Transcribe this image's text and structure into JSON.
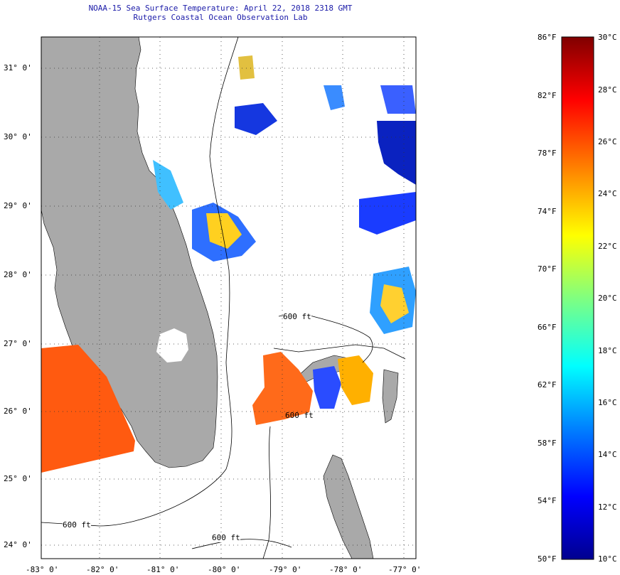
{
  "title": {
    "line1": "NOAA-15 Sea Surface Temperature:  April 22, 2018 2318 GMT",
    "line2": "Rutgers Coastal Ocean Observation Lab"
  },
  "map": {
    "lat_labels": [
      "31° 0'",
      "30° 0'",
      "29° 0'",
      "28° 0'",
      "27° 0'",
      "26° 0'",
      "25° 0'",
      "24° 0'"
    ],
    "lon_labels": [
      "-83° 0'",
      "-82° 0'",
      "-81° 0'",
      "-80° 0'",
      "-79° 0'",
      "-78° 0'",
      "-77° 0'"
    ],
    "isobath_labels": [
      "600 ft",
      "600 ft",
      "600 ft",
      "600 ft"
    ],
    "land_color": "#a9a9a9",
    "background_color": "#ffffff",
    "grid": "dotted"
  },
  "colorbar": {
    "fahrenheit": [
      "86°F",
      "82°F",
      "78°F",
      "74°F",
      "70°F",
      "66°F",
      "62°F",
      "58°F",
      "54°F",
      "50°F"
    ],
    "celsius": [
      "30°C",
      "28°C",
      "26°C",
      "24°C",
      "22°C",
      "20°C",
      "18°C",
      "16°C",
      "14°C",
      "12°C",
      "10°C"
    ],
    "range_c": [
      10,
      30
    ],
    "range_f": [
      50,
      86
    ],
    "colormap": "jet",
    "colors": [
      "#00008f",
      "#0000ff",
      "#0080ff",
      "#00ffff",
      "#80ff80",
      "#ffff00",
      "#ff8000",
      "#ff0000",
      "#800000"
    ]
  }
}
